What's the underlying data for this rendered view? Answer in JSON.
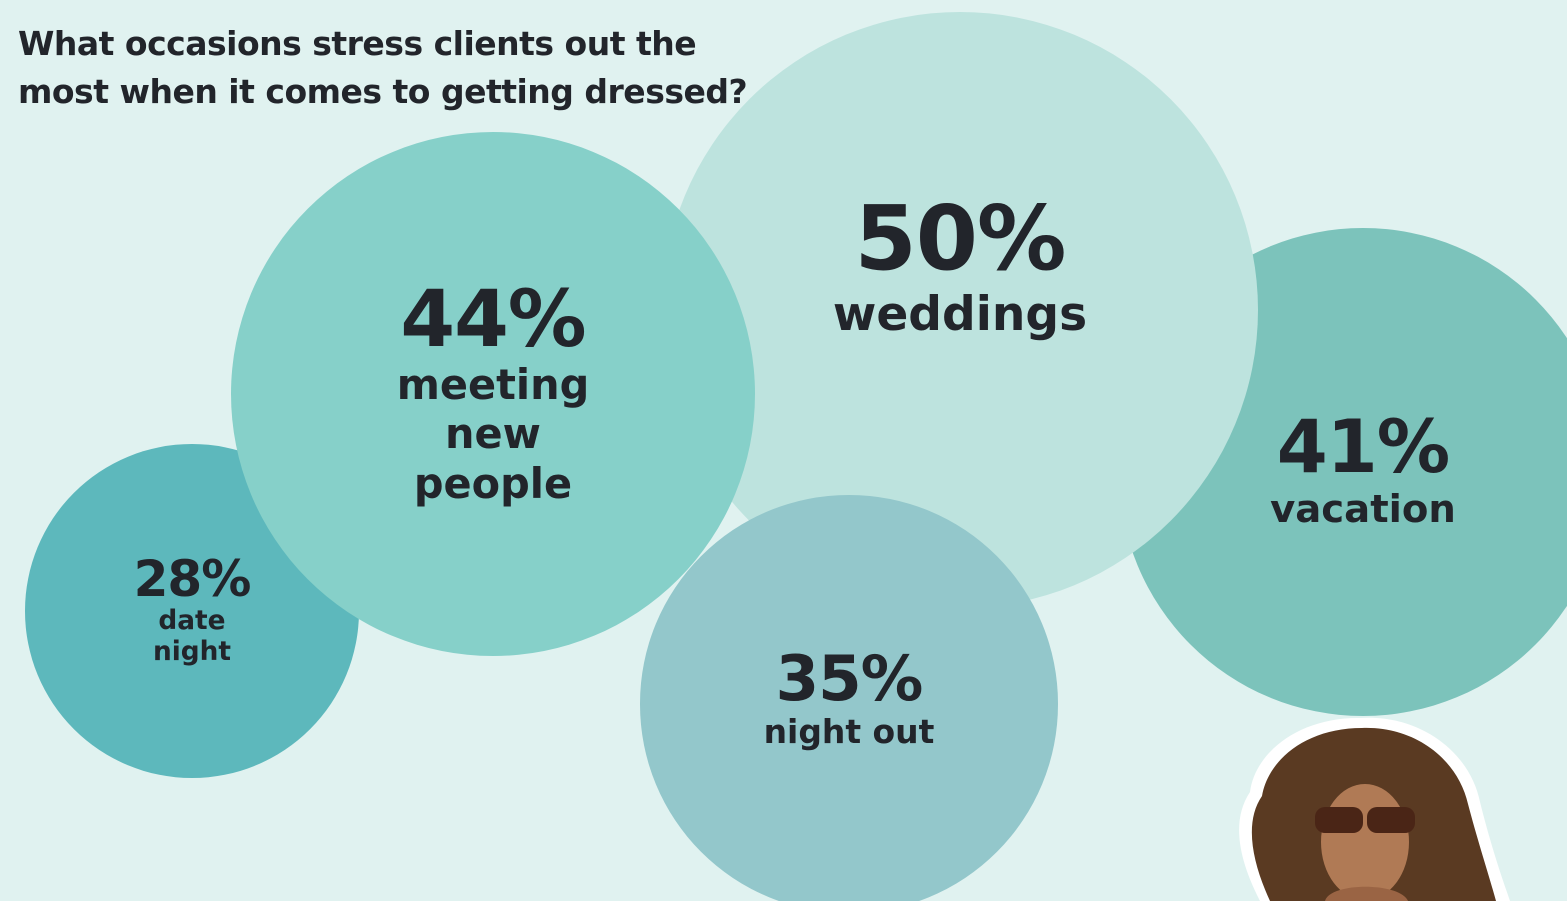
{
  "chart_data": {
    "type": "bubble",
    "title": "What occasions stress clients out the most when it comes to getting dressed?",
    "categories": [
      "weddings",
      "meeting new people",
      "vacation",
      "night out",
      "date night"
    ],
    "values": [
      50,
      44,
      41,
      35,
      28
    ],
    "value_labels": [
      "50%",
      "44%",
      "41%",
      "35%",
      "28%"
    ],
    "colors": [
      "#bde3de",
      "#86d0c9",
      "#7cc3bb",
      "#93c7cb",
      "#5db8bc"
    ]
  }
}
